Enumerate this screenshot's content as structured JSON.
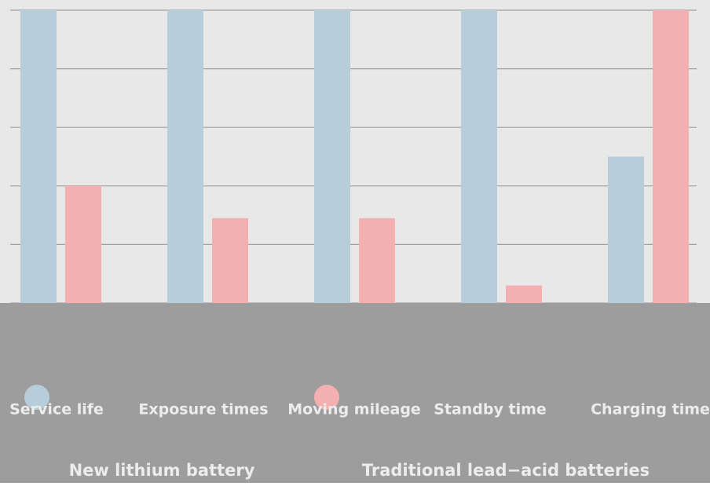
{
  "chart_data": {
    "type": "bar",
    "categories": [
      "Service life",
      "Exposure times",
      "Moving mileage",
      "Standby time",
      "Charging time"
    ],
    "series": [
      {
        "name": "New lithium battery",
        "color": "#b7cdd9",
        "values": [
          5,
          5,
          5,
          5,
          2.5
        ]
      },
      {
        "name": "Traditional lead−acid batteries",
        "color": "#f4b0b0",
        "values": [
          2,
          1.45,
          1.45,
          0.3,
          5
        ]
      }
    ],
    "ylim": [
      0,
      5
    ],
    "yticks": [
      0,
      1,
      2,
      3,
      4,
      5
    ],
    "grid": true
  }
}
